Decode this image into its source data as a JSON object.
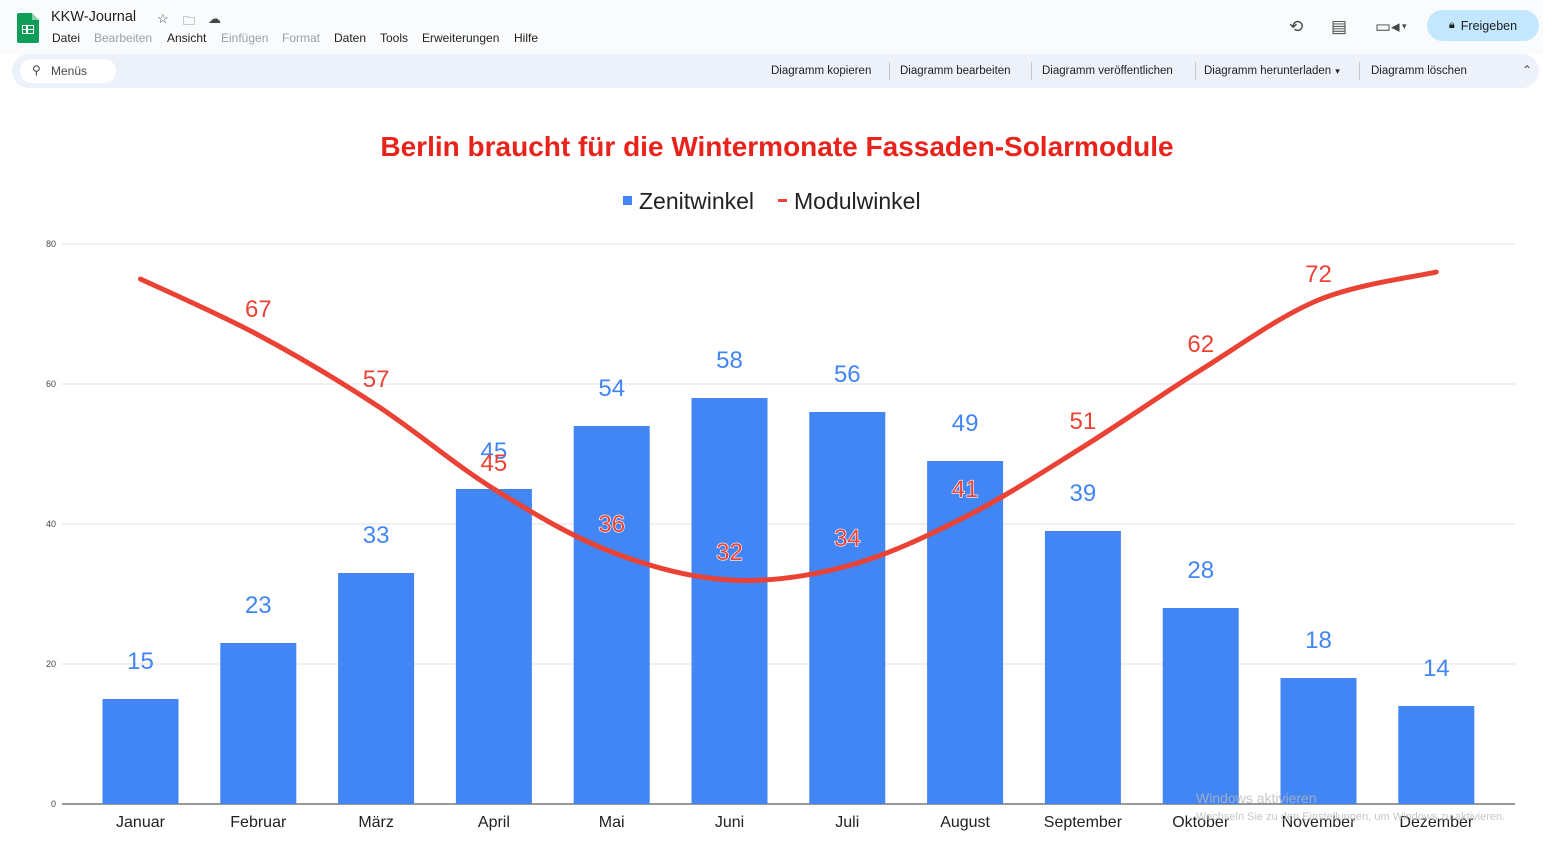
{
  "app": {
    "title": "KKW-Journal",
    "menu": [
      {
        "label": "Datei",
        "enabled": true
      },
      {
        "label": "Bearbeiten",
        "enabled": false
      },
      {
        "label": "Ansicht",
        "enabled": true
      },
      {
        "label": "Einfügen",
        "enabled": false
      },
      {
        "label": "Format",
        "enabled": false
      },
      {
        "label": "Daten",
        "enabled": true
      },
      {
        "label": "Tools",
        "enabled": true
      },
      {
        "label": "Erweiterungen",
        "enabled": true
      },
      {
        "label": "Hilfe",
        "enabled": true
      }
    ],
    "share_label": "Freigeben",
    "accent": "#c2e7ff",
    "icons": {
      "star": "star-icon",
      "folder": "move-folder-icon",
      "cloud": "cloud-status-icon",
      "history": "history-icon",
      "comments": "comments-icon",
      "meet": "video-call-icon",
      "lock": "lock-icon",
      "search": "search-icon",
      "collapse": "chevron-up-icon"
    }
  },
  "toolbar": {
    "search_label": "Menüs",
    "actions": [
      "Diagramm kopieren",
      "Diagramm bearbeiten",
      "Diagramm veröffentlichen",
      "Diagramm herunterladen",
      "Diagramm löschen"
    ],
    "dropdown_glyph": "▾"
  },
  "chart_data": {
    "type": "bar",
    "title": "Berlin braucht für die Wintermonate Fassaden-Solarmodule",
    "title_color": "#e8231c",
    "categories": [
      "Januar",
      "Februar",
      "März",
      "April",
      "Mai",
      "Juni",
      "Juli",
      "August",
      "September",
      "Oktober",
      "November",
      "Dezember"
    ],
    "series": [
      {
        "name": "Zenitwinkel",
        "type": "bar",
        "color": "#4285f4",
        "values": [
          15,
          23,
          33,
          45,
          54,
          58,
          56,
          49,
          39,
          28,
          18,
          14
        ],
        "labels": [
          "15",
          "23",
          "33",
          "45",
          "54",
          "58",
          "56",
          "49",
          "39",
          "28",
          "18",
          "14"
        ]
      },
      {
        "name": "Modulwinkel",
        "type": "line",
        "color": "#ea4335",
        "values": [
          75,
          67,
          57,
          45,
          36,
          32,
          34,
          41,
          51,
          62,
          72,
          76
        ],
        "labels": [
          "",
          "67",
          "57",
          "45",
          "36",
          "32",
          "34",
          "41",
          "51",
          "62",
          "72",
          ""
        ]
      }
    ],
    "ylim": [
      0,
      80
    ],
    "yticks": [
      "0",
      "20",
      "40",
      "60",
      "80"
    ],
    "xlabel": "",
    "ylabel": "",
    "grid": true,
    "legend_position": "top"
  },
  "watermark": {
    "title": "Windows aktivieren",
    "subtitle": "Wechseln Sie zu den Einstellungen, um Windows zu aktivieren."
  }
}
